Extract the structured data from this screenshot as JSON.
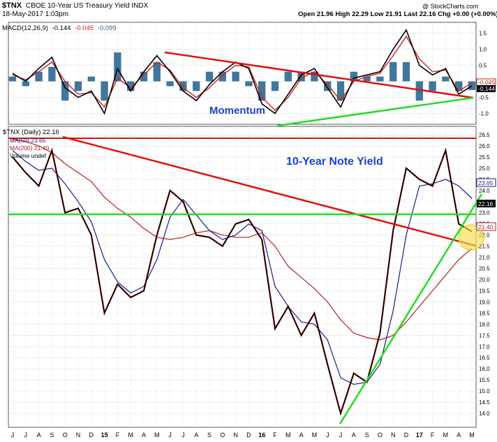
{
  "header": {
    "symbol": "$TNX",
    "name": "CBOE 10-Year US Treasury Yield INDX",
    "date": "18-May-2017 1:03pm",
    "quote": "Open 21.96  High 22.29  Low 21.91  Last 22.16  Chg +0.00 (+0.00%)",
    "brand": "@ StockCharts.com"
  },
  "macd_panel": {
    "legend_label": "MACD(12,26,9)",
    "legend_macd": "-0.144",
    "legend_signal": "-0.045",
    "legend_hist": "-0.099",
    "annotation": "Momentum",
    "right_box_top": "-0.045",
    "right_box_bottom": "-0.144"
  },
  "price_panel": {
    "legend_symbol": "$TNX (Daily) 22.16",
    "legend_ma50": "MA(50) 23.65",
    "legend_ma200": "MA(200) 21.40",
    "legend_volume": "Volume undef",
    "annotation": "10-Year Note Yield",
    "box_ma50": "23.65",
    "box_last": "22.16",
    "box_ma200": "21.40"
  },
  "colors": {
    "price": "#000000",
    "price_down": "#8b0000",
    "ma50": "#1a1a8c",
    "ma200": "#b22222",
    "macd": "#000000",
    "signal": "#cc2222",
    "histogram": "#1f5f8b",
    "trend_red": "#e01010",
    "trend_green": "#22dd22",
    "annotation": "#1f3fd0",
    "highlight": "#f5e050"
  },
  "chart_data": [
    {
      "type": "line",
      "panel": "macd",
      "ylim": [
        -1.25,
        1.75
      ],
      "yticks": [
        -1.0,
        -0.5,
        0.0,
        0.5,
        1.0,
        1.5
      ],
      "x": [
        "2014-06",
        "2014-07",
        "2014-08",
        "2014-09",
        "2014-10",
        "2014-11",
        "2014-12",
        "2015-01",
        "2015-02",
        "2015-03",
        "2015-04",
        "2015-05",
        "2015-06",
        "2015-07",
        "2015-08",
        "2015-09",
        "2015-10",
        "2015-11",
        "2015-12",
        "2016-01",
        "2016-02",
        "2016-03",
        "2016-04",
        "2016-05",
        "2016-06",
        "2016-07",
        "2016-08",
        "2016-09",
        "2016-10",
        "2016-11",
        "2016-12",
        "2017-01",
        "2017-02",
        "2017-03",
        "2017-04",
        "2017-05"
      ],
      "series": [
        {
          "name": "MACD(12,26,9)",
          "values": [
            0.25,
            0.0,
            0.4,
            0.75,
            -0.2,
            -0.5,
            -0.3,
            -1.0,
            0.4,
            -0.3,
            0.3,
            0.8,
            0.3,
            -0.3,
            -0.6,
            -0.1,
            0.3,
            0.6,
            0.4,
            -0.7,
            -1.0,
            -0.4,
            0.2,
            0.4,
            -0.2,
            -0.8,
            0.1,
            0.2,
            0.3,
            1.0,
            1.6,
            0.5,
            0.2,
            0.4,
            -0.4,
            -0.14
          ]
        },
        {
          "name": "Signal",
          "values": [
            0.2,
            0.05,
            0.3,
            0.6,
            0.0,
            -0.4,
            -0.35,
            -0.8,
            0.1,
            -0.2,
            0.2,
            0.6,
            0.35,
            -0.2,
            -0.5,
            -0.2,
            0.2,
            0.5,
            0.45,
            -0.5,
            -0.9,
            -0.5,
            0.1,
            0.3,
            -0.1,
            -0.6,
            0.0,
            0.15,
            0.25,
            0.8,
            1.4,
            0.7,
            0.3,
            0.35,
            -0.3,
            -0.05
          ]
        }
      ],
      "tick_labels": [
        "J",
        "J",
        "A",
        "S",
        "O",
        "N",
        "D",
        "15",
        "F",
        "M",
        "A",
        "M",
        "J",
        "J",
        "A",
        "S",
        "O",
        "N",
        "D",
        "16",
        "F",
        "M",
        "A",
        "M",
        "J",
        "J",
        "A",
        "S",
        "O",
        "N",
        "D",
        "17",
        "F",
        "M",
        "A",
        "M"
      ]
    },
    {
      "type": "line",
      "panel": "price",
      "ylim": [
        13.5,
        26.75
      ],
      "yticks": [
        14.0,
        14.5,
        15.0,
        15.5,
        16.0,
        16.5,
        17.0,
        17.5,
        18.0,
        18.5,
        19.0,
        19.5,
        20.0,
        20.5,
        21.0,
        21.5,
        22.0,
        22.5,
        23.0,
        23.5,
        24.0,
        24.5,
        25.0,
        25.5,
        26.0,
        26.5
      ],
      "x": [
        "2014-06",
        "2014-07",
        "2014-08",
        "2014-09",
        "2014-10",
        "2014-11",
        "2014-12",
        "2015-01",
        "2015-02",
        "2015-03",
        "2015-04",
        "2015-05",
        "2015-06",
        "2015-07",
        "2015-08",
        "2015-09",
        "2015-10",
        "2015-11",
        "2015-12",
        "2016-01",
        "2016-02",
        "2016-03",
        "2016-04",
        "2016-05",
        "2016-06",
        "2016-07",
        "2016-08",
        "2016-09",
        "2016-10",
        "2016-11",
        "2016-12",
        "2017-01",
        "2017-02",
        "2017-03",
        "2017-04",
        "2017-05"
      ],
      "series": [
        {
          "name": "$TNX (Daily)",
          "values": [
            25.5,
            24.8,
            24.2,
            25.8,
            23.0,
            23.2,
            22.0,
            18.5,
            19.8,
            19.2,
            19.5,
            22.0,
            24.0,
            23.5,
            22.0,
            21.9,
            21.5,
            22.5,
            22.7,
            21.8,
            17.8,
            18.8,
            17.5,
            18.5,
            16.2,
            14.0,
            15.8,
            15.4,
            17.6,
            22.2,
            25.0,
            24.5,
            24.2,
            25.8,
            22.5,
            22.16
          ]
        },
        {
          "name": "MA(50)",
          "values": [
            25.8,
            25.3,
            24.9,
            25.0,
            24.3,
            23.5,
            22.6,
            20.9,
            19.9,
            19.4,
            19.7,
            20.9,
            22.8,
            23.6,
            22.9,
            22.2,
            21.8,
            22.0,
            22.5,
            22.2,
            19.7,
            18.8,
            18.1,
            18.0,
            17.3,
            15.6,
            15.3,
            15.4,
            16.2,
            18.6,
            22.0,
            24.2,
            24.3,
            24.5,
            24.2,
            23.65
          ]
        },
        {
          "name": "MA(200)",
          "values": [
            26.3,
            26.2,
            26.0,
            25.7,
            25.2,
            24.8,
            24.4,
            23.7,
            23.2,
            22.8,
            22.3,
            21.9,
            21.8,
            21.9,
            22.1,
            22.2,
            22.0,
            21.9,
            21.9,
            22.1,
            21.5,
            20.6,
            20.1,
            19.6,
            19.0,
            18.2,
            17.6,
            17.4,
            17.3,
            17.5,
            18.1,
            18.8,
            19.5,
            20.2,
            20.9,
            21.4
          ]
        }
      ],
      "tick_labels": [
        "J",
        "J",
        "A",
        "S",
        "O",
        "N",
        "D",
        "15",
        "F",
        "M",
        "A",
        "M",
        "J",
        "J",
        "A",
        "S",
        "O",
        "N",
        "D",
        "16",
        "F",
        "M",
        "A",
        "M",
        "J",
        "J",
        "A",
        "S",
        "O",
        "N",
        "D",
        "17",
        "F",
        "M",
        "A",
        "M"
      ]
    }
  ]
}
